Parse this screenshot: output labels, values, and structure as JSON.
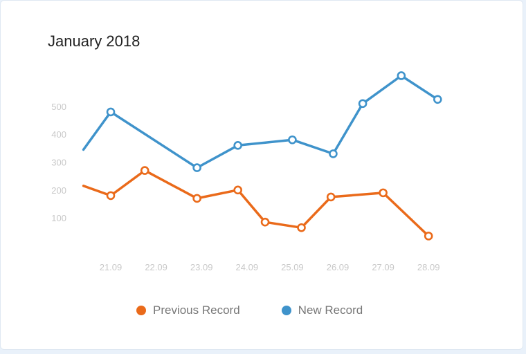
{
  "card": {
    "title": "January 2018"
  },
  "colors": {
    "previous": "#ea6a1a",
    "new": "#3f93cb",
    "tick": "#c8c8c8",
    "legend_text": "#777777"
  },
  "chart_data": {
    "type": "line",
    "title": "January 2018",
    "xlabel": "",
    "ylabel": "",
    "categories": [
      "21.09",
      "22.09",
      "23.09",
      "24.09",
      "25.09",
      "26.09",
      "27.09",
      "28.09"
    ],
    "y_ticks": [
      100,
      200,
      300,
      400,
      500
    ],
    "ylim": [
      0,
      600
    ],
    "grid": false,
    "legend_position": "bottom",
    "series": [
      {
        "name": "Previous Record",
        "color": "#ea6a1a",
        "points": [
          {
            "x": 20.4,
            "y": 215,
            "marker": false
          },
          {
            "x": 21.0,
            "y": 180,
            "marker": true
          },
          {
            "x": 21.75,
            "y": 270,
            "marker": true
          },
          {
            "x": 22.9,
            "y": 170,
            "marker": true
          },
          {
            "x": 23.8,
            "y": 200,
            "marker": true
          },
          {
            "x": 24.4,
            "y": 85,
            "marker": true
          },
          {
            "x": 25.2,
            "y": 65,
            "marker": true
          },
          {
            "x": 25.85,
            "y": 175,
            "marker": true
          },
          {
            "x": 27.0,
            "y": 190,
            "marker": true
          },
          {
            "x": 28.0,
            "y": 35,
            "marker": true
          }
        ]
      },
      {
        "name": "New Record",
        "color": "#3f93cb",
        "points": [
          {
            "x": 20.4,
            "y": 345,
            "marker": false
          },
          {
            "x": 21.0,
            "y": 480,
            "marker": true
          },
          {
            "x": 22.9,
            "y": 280,
            "marker": true
          },
          {
            "x": 23.8,
            "y": 360,
            "marker": true
          },
          {
            "x": 25.0,
            "y": 380,
            "marker": true
          },
          {
            "x": 25.9,
            "y": 330,
            "marker": true
          },
          {
            "x": 26.55,
            "y": 510,
            "marker": true
          },
          {
            "x": 27.4,
            "y": 610,
            "marker": true
          },
          {
            "x": 28.2,
            "y": 525,
            "marker": true
          }
        ]
      }
    ]
  },
  "legend": {
    "items": [
      {
        "label": "Previous Record",
        "color": "#ea6a1a"
      },
      {
        "label": "New Record",
        "color": "#3f93cb"
      }
    ]
  }
}
